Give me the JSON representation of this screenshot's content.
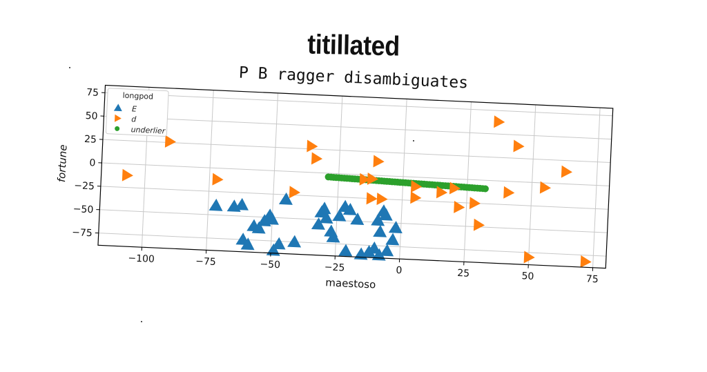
{
  "chart_data": {
    "type": "scatter",
    "title": "titillated",
    "subtitle": "P B ragger disambiguates",
    "xlabel": "maestoso",
    "ylabel": "fortune",
    "xlim": [
      -117,
      80
    ],
    "ylim": [
      -88,
      83
    ],
    "xticks": [
      -100,
      -75,
      -50,
      -25,
      0,
      25,
      50,
      75
    ],
    "yticks": [
      -75,
      -50,
      -25,
      0,
      25,
      50,
      75
    ],
    "grid": true,
    "legend": {
      "title": "longpod",
      "placement": "top-left"
    },
    "series": [
      {
        "name": "E",
        "marker": "triangle-up",
        "color": "#1f77b4",
        "points": [
          [
            -72,
            -40
          ],
          [
            -65,
            -40
          ],
          [
            -62,
            -38
          ],
          [
            -61,
            -75
          ],
          [
            -59,
            -80
          ],
          [
            -57,
            -60
          ],
          [
            -55,
            -62
          ],
          [
            -53,
            -54
          ],
          [
            -51,
            -48
          ],
          [
            -50,
            -52
          ],
          [
            -49,
            -85
          ],
          [
            -47,
            -78
          ],
          [
            -45,
            -30
          ],
          [
            -41,
            -75
          ],
          [
            -32,
            -55
          ],
          [
            -31,
            -42
          ],
          [
            -30,
            -38
          ],
          [
            -29,
            -48
          ],
          [
            -27,
            -62
          ],
          [
            -26,
            -68
          ],
          [
            -24,
            -45
          ],
          [
            -22,
            -35
          ],
          [
            -21,
            -82
          ],
          [
            -20,
            -38
          ],
          [
            -17,
            -48
          ],
          [
            -15,
            -85
          ],
          [
            -12,
            -82
          ],
          [
            -10,
            -78
          ],
          [
            -9,
            -48
          ],
          [
            -8,
            -60
          ],
          [
            -8,
            -85
          ],
          [
            -7,
            -38
          ],
          [
            -6,
            -42
          ],
          [
            -5,
            -80
          ],
          [
            -3,
            -68
          ],
          [
            -2,
            -55
          ]
        ]
      },
      {
        "name": "d",
        "marker": "triangle-right",
        "color": "#ff7f0e",
        "points": [
          [
            -107,
            -12
          ],
          [
            -91,
            26
          ],
          [
            -72,
            -12
          ],
          [
            -42,
            -22
          ],
          [
            -36,
            28
          ],
          [
            -34,
            15
          ],
          [
            -15,
            -5
          ],
          [
            -12,
            -4
          ],
          [
            -12,
            -25
          ],
          [
            -10,
            15
          ],
          [
            -8,
            -25
          ],
          [
            5,
            -10
          ],
          [
            5,
            -22
          ],
          [
            15,
            -15
          ],
          [
            20,
            -10
          ],
          [
            22,
            -30
          ],
          [
            28,
            -25
          ],
          [
            30,
            -48
          ],
          [
            36,
            63
          ],
          [
            41,
            -12
          ],
          [
            44,
            38
          ],
          [
            50,
            -80
          ],
          [
            55,
            -5
          ],
          [
            63,
            13
          ],
          [
            72,
            -82
          ]
        ]
      },
      {
        "name": "underlier",
        "marker": "circle",
        "color": "#2ca02c",
        "line": {
          "x_from": -29,
          "x_to": 32,
          "y_from": -4,
          "y_to": -9,
          "n": 60
        }
      }
    ]
  }
}
